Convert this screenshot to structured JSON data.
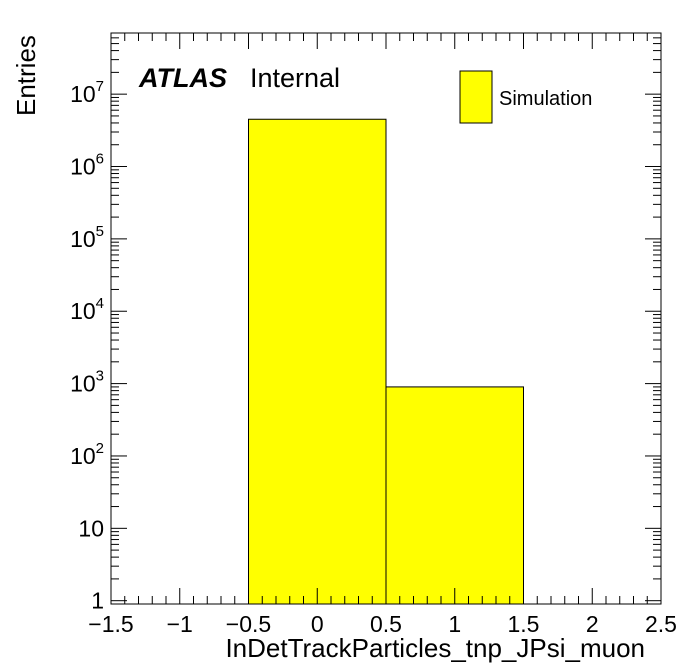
{
  "chart_data": {
    "type": "bar",
    "style": "histogram",
    "x_bins": [
      [
        -0.5,
        0.5
      ],
      [
        0.5,
        1.5
      ]
    ],
    "values": [
      4500000,
      900
    ],
    "xlim": [
      -1.5,
      2.5
    ],
    "ylim": [
      0.9,
      70000000
    ],
    "yscale": "log",
    "xlabel": "InDetTrackParticles_tnp_JPsi_muon",
    "ylabel": "Entries",
    "x_tick_labels": [
      "−1.5",
      "−1",
      "−0.5",
      "0",
      "0.5",
      "1",
      "1.5",
      "2",
      "2.5"
    ],
    "x_tick_values": [
      -1.5,
      -1,
      -0.5,
      0,
      0.5,
      1,
      1.5,
      2,
      2.5
    ],
    "y_ticks": [
      {
        "value": 1,
        "base": "1",
        "exp": ""
      },
      {
        "value": 10,
        "base": "10",
        "exp": ""
      },
      {
        "value": 100,
        "base": "10",
        "exp": "2"
      },
      {
        "value": 1000,
        "base": "10",
        "exp": "3"
      },
      {
        "value": 10000,
        "base": "10",
        "exp": "4"
      },
      {
        "value": 100000,
        "base": "10",
        "exp": "5"
      },
      {
        "value": 1000000,
        "base": "10",
        "exp": "6"
      },
      {
        "value": 10000000,
        "base": "10",
        "exp": "7"
      }
    ],
    "legend": {
      "placement": "top-right",
      "entries": [
        {
          "label": "Simulation",
          "color": "#ffff00"
        }
      ]
    },
    "colors": {
      "fill": "#ffff00",
      "edge": "#000000"
    },
    "grid": false
  },
  "annotation": {
    "atlas": "ATLAS",
    "status": "Internal"
  }
}
